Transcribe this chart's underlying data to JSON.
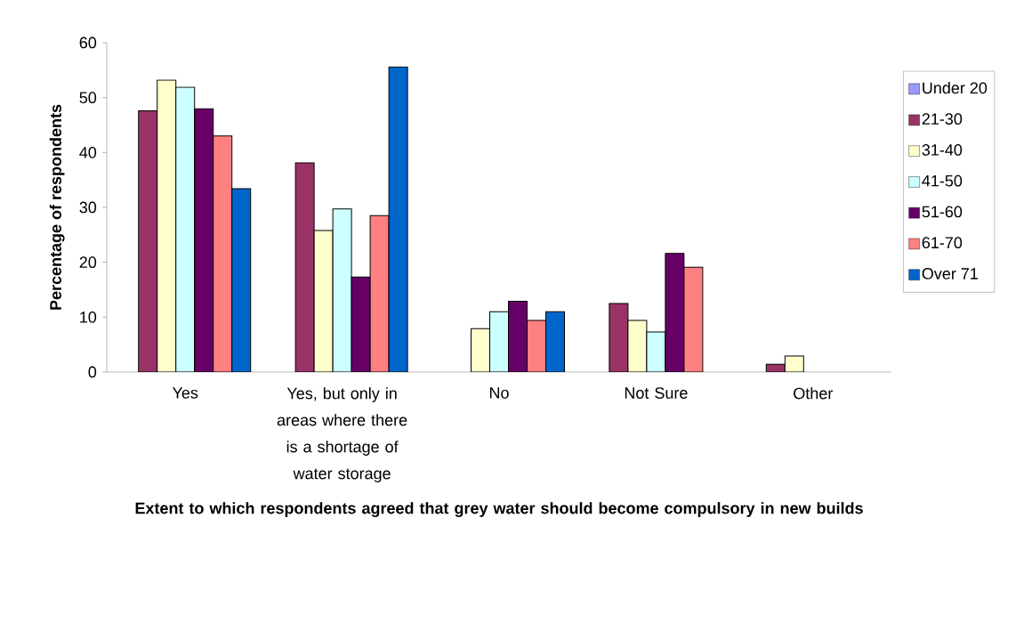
{
  "chart_data": {
    "type": "bar",
    "xlabel": "Extent to which respondents agreed that grey water should become compulsory in new builds",
    "ylabel": "Percentage of respondents",
    "categories": [
      "Yes",
      "Yes, but only in areas where there is a shortage of water storage",
      "No",
      "Not Sure",
      "Other"
    ],
    "series": [
      {
        "name": "Under 20",
        "color": "#9999ff",
        "values": [
          null,
          null,
          null,
          null,
          null
        ]
      },
      {
        "name": "21-30",
        "color": "#993366",
        "values": [
          47.6,
          38.1,
          null,
          12.5,
          1.4
        ]
      },
      {
        "name": "31-40",
        "color": "#ffffcc",
        "values": [
          53.2,
          25.8,
          7.9,
          9.4,
          2.9
        ]
      },
      {
        "name": "41-50",
        "color": "#ccffff",
        "values": [
          51.9,
          29.7,
          11.0,
          7.3,
          null
        ]
      },
      {
        "name": "51-60",
        "color": "#660066",
        "values": [
          48.0,
          17.3,
          12.9,
          21.6,
          null
        ]
      },
      {
        "name": "61-70",
        "color": "#ff8080",
        "values": [
          43.0,
          28.5,
          9.4,
          19.1,
          null
        ]
      },
      {
        "name": "Over 71",
        "color": "#0066cc",
        "values": [
          33.4,
          55.6,
          11.0,
          null,
          null
        ]
      }
    ],
    "ylim": [
      0,
      60
    ],
    "yticks": [
      0,
      10,
      20,
      30,
      40,
      50,
      60
    ],
    "legend": "right"
  }
}
